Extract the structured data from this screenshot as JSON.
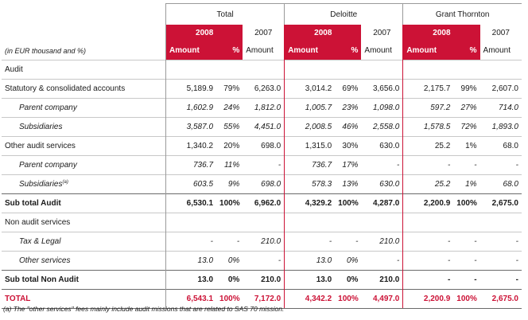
{
  "header": {
    "label": "(in EUR thousand and %)",
    "groups": [
      "Total",
      "Deloitte",
      "Grant Thornton"
    ],
    "year_current": "2008",
    "year_prev": "2007",
    "amount": "Amount",
    "pct": "%"
  },
  "rows": [
    {
      "label": "Audit",
      "style": "sec",
      "vals": [
        "",
        "",
        "",
        "",
        "",
        "",
        "",
        "",
        ""
      ]
    },
    {
      "label": "Statutory & consolidated accounts",
      "style": "",
      "vals": [
        "5,189.9",
        "79%",
        "6,263.0",
        "3,014.2",
        "69%",
        "3,656.0",
        "2,175.7",
        "99%",
        "2,607.0"
      ]
    },
    {
      "label": "Parent company",
      "style": "sub",
      "vals": [
        "1,602.9",
        "24%",
        "1,812.0",
        "1,005.7",
        "23%",
        "1,098.0",
        "597.2",
        "27%",
        "714.0"
      ]
    },
    {
      "label": "Subsidiaries",
      "style": "sub",
      "vals": [
        "3,587.0",
        "55%",
        "4,451.0",
        "2,008.5",
        "46%",
        "2,558.0",
        "1,578.5",
        "72%",
        "1,893.0"
      ]
    },
    {
      "label": "Other audit services",
      "style": "",
      "vals": [
        "1,340.2",
        "20%",
        "698.0",
        "1,315.0",
        "30%",
        "630.0",
        "25.2",
        "1%",
        "68.0"
      ]
    },
    {
      "label": "Parent company",
      "style": "sub",
      "vals": [
        "736.7",
        "11%",
        "-",
        "736.7",
        "17%",
        "-",
        "-",
        "-",
        "-"
      ]
    },
    {
      "label": "Subsidiaries",
      "sup": "(a)",
      "style": "sub",
      "vals": [
        "603.5",
        "9%",
        "698.0",
        "578.3",
        "13%",
        "630.0",
        "25.2",
        "1%",
        "68.0"
      ]
    },
    {
      "label": "Sub total Audit",
      "style": "bold",
      "vals": [
        "6,530.1",
        "100%",
        "6,962.0",
        "4,329.2",
        "100%",
        "4,287.0",
        "2,200.9",
        "100%",
        "2,675.0"
      ]
    },
    {
      "label": "Non audit services",
      "style": "sec",
      "vals": [
        "",
        "",
        "",
        "",
        "",
        "",
        "",
        "",
        ""
      ]
    },
    {
      "label": "Tax & Legal",
      "style": "sub",
      "vals": [
        "-",
        "-",
        "210.0",
        "-",
        "-",
        "210.0",
        "-",
        "-",
        "-"
      ]
    },
    {
      "label": "Other services",
      "style": "sub",
      "vals": [
        "13.0",
        "0%",
        "-",
        "13.0",
        "0%",
        "-",
        "-",
        "-",
        "-"
      ]
    },
    {
      "label": "Sub total Non Audit",
      "style": "bold",
      "vals": [
        "13.0",
        "0%",
        "210.0",
        "13.0",
        "0%",
        "210.0",
        "-",
        "-",
        "-"
      ]
    },
    {
      "label": "TOTAL",
      "style": "total",
      "vals": [
        "6,543.1",
        "100%",
        "7,172.0",
        "4,342.2",
        "100%",
        "4,497.0",
        "2,200.9",
        "100%",
        "2,675.0"
      ]
    }
  ],
  "footnote": "(a) The \"other services\" fees mainly include audit missions that are related to SAS 70 mission.",
  "colors": {
    "accent": "#cc1236"
  }
}
